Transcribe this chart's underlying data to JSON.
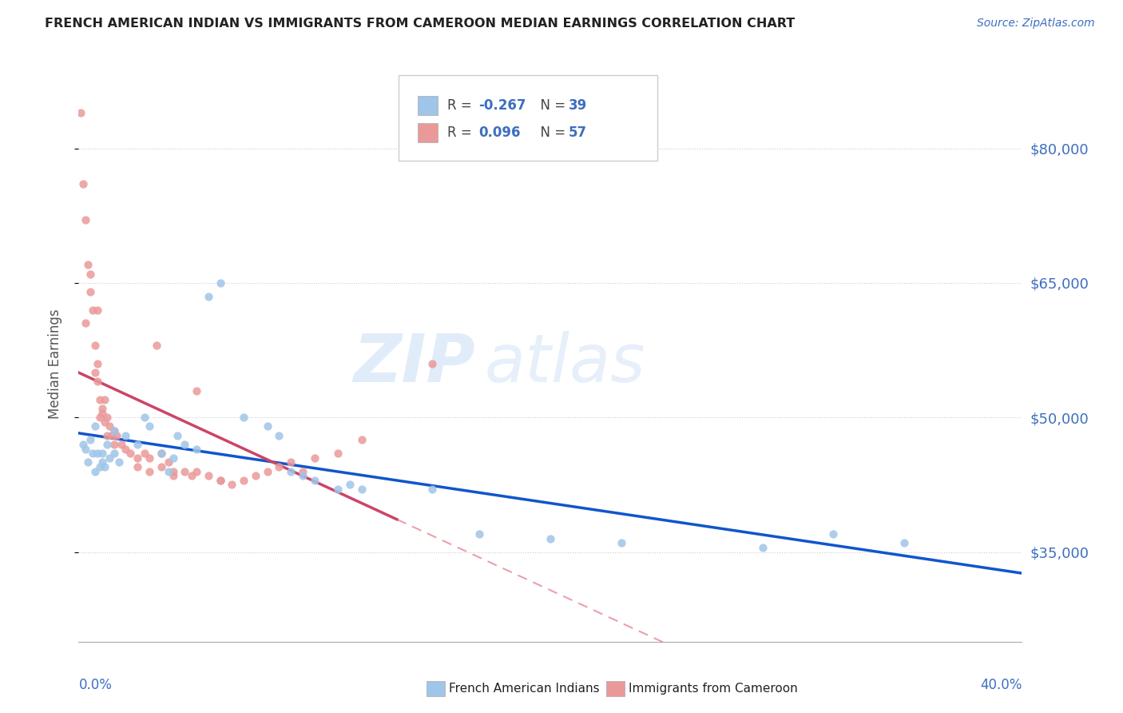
{
  "title": "FRENCH AMERICAN INDIAN VS IMMIGRANTS FROM CAMEROON MEDIAN EARNINGS CORRELATION CHART",
  "source": "Source: ZipAtlas.com",
  "ylabel": "Median Earnings",
  "y_ticks": [
    35000,
    50000,
    65000,
    80000
  ],
  "y_tick_labels": [
    "$35,000",
    "$50,000",
    "$65,000",
    "$80,000"
  ],
  "x_range": [
    0.0,
    0.4
  ],
  "y_range": [
    25000,
    87000
  ],
  "watermark_zip": "ZIP",
  "watermark_atlas": "atlas",
  "legend_label_blue": "French American Indians",
  "legend_label_pink": "Immigrants from Cameroon",
  "blue_color": "#9fc5e8",
  "pink_color": "#ea9999",
  "blue_line_color": "#1155cc",
  "pink_line_solid_color": "#cc4466",
  "pink_line_dashed_color": "#e06070",
  "blue_dots": [
    [
      0.002,
      47000
    ],
    [
      0.003,
      46500
    ],
    [
      0.004,
      45000
    ],
    [
      0.005,
      47500
    ],
    [
      0.006,
      46000
    ],
    [
      0.007,
      49000
    ],
    [
      0.007,
      44000
    ],
    [
      0.008,
      46000
    ],
    [
      0.009,
      44500
    ],
    [
      0.01,
      46000
    ],
    [
      0.01,
      45000
    ],
    [
      0.011,
      44500
    ],
    [
      0.012,
      47000
    ],
    [
      0.013,
      45500
    ],
    [
      0.015,
      48500
    ],
    [
      0.015,
      46000
    ],
    [
      0.017,
      45000
    ],
    [
      0.02,
      48000
    ],
    [
      0.025,
      47000
    ],
    [
      0.028,
      50000
    ],
    [
      0.03,
      49000
    ],
    [
      0.035,
      46000
    ],
    [
      0.038,
      44000
    ],
    [
      0.04,
      45500
    ],
    [
      0.042,
      48000
    ],
    [
      0.045,
      47000
    ],
    [
      0.05,
      46500
    ],
    [
      0.055,
      63500
    ],
    [
      0.06,
      65000
    ],
    [
      0.07,
      50000
    ],
    [
      0.08,
      49000
    ],
    [
      0.085,
      48000
    ],
    [
      0.09,
      44000
    ],
    [
      0.095,
      43500
    ],
    [
      0.1,
      43000
    ],
    [
      0.11,
      42000
    ],
    [
      0.115,
      42500
    ],
    [
      0.12,
      42000
    ],
    [
      0.15,
      42000
    ],
    [
      0.17,
      37000
    ],
    [
      0.2,
      36500
    ],
    [
      0.23,
      36000
    ],
    [
      0.29,
      35500
    ],
    [
      0.32,
      37000
    ],
    [
      0.35,
      36000
    ]
  ],
  "pink_dots": [
    [
      0.001,
      84000
    ],
    [
      0.002,
      76000
    ],
    [
      0.003,
      72000
    ],
    [
      0.004,
      67000
    ],
    [
      0.005,
      66000
    ],
    [
      0.006,
      62000
    ],
    [
      0.007,
      58000
    ],
    [
      0.007,
      55000
    ],
    [
      0.008,
      56000
    ],
    [
      0.008,
      54000
    ],
    [
      0.009,
      52000
    ],
    [
      0.009,
      50000
    ],
    [
      0.01,
      51000
    ],
    [
      0.01,
      50500
    ],
    [
      0.011,
      52000
    ],
    [
      0.011,
      49500
    ],
    [
      0.012,
      50000
    ],
    [
      0.012,
      48000
    ],
    [
      0.013,
      49000
    ],
    [
      0.014,
      48000
    ],
    [
      0.015,
      48500
    ],
    [
      0.015,
      47000
    ],
    [
      0.016,
      48000
    ],
    [
      0.018,
      47000
    ],
    [
      0.02,
      46500
    ],
    [
      0.022,
      46000
    ],
    [
      0.025,
      45500
    ],
    [
      0.025,
      44500
    ],
    [
      0.028,
      46000
    ],
    [
      0.03,
      45500
    ],
    [
      0.03,
      44000
    ],
    [
      0.033,
      58000
    ],
    [
      0.035,
      46000
    ],
    [
      0.035,
      44500
    ],
    [
      0.038,
      45000
    ],
    [
      0.04,
      44000
    ],
    [
      0.04,
      43500
    ],
    [
      0.045,
      44000
    ],
    [
      0.048,
      43500
    ],
    [
      0.05,
      44000
    ],
    [
      0.055,
      43500
    ],
    [
      0.06,
      43000
    ],
    [
      0.06,
      43000
    ],
    [
      0.065,
      42500
    ],
    [
      0.07,
      43000
    ],
    [
      0.075,
      43500
    ],
    [
      0.08,
      44000
    ],
    [
      0.085,
      44500
    ],
    [
      0.09,
      45000
    ],
    [
      0.095,
      44000
    ],
    [
      0.1,
      45500
    ],
    [
      0.11,
      46000
    ],
    [
      0.12,
      47500
    ],
    [
      0.15,
      56000
    ],
    [
      0.005,
      64000
    ],
    [
      0.003,
      60500
    ],
    [
      0.008,
      62000
    ],
    [
      0.05,
      53000
    ]
  ]
}
